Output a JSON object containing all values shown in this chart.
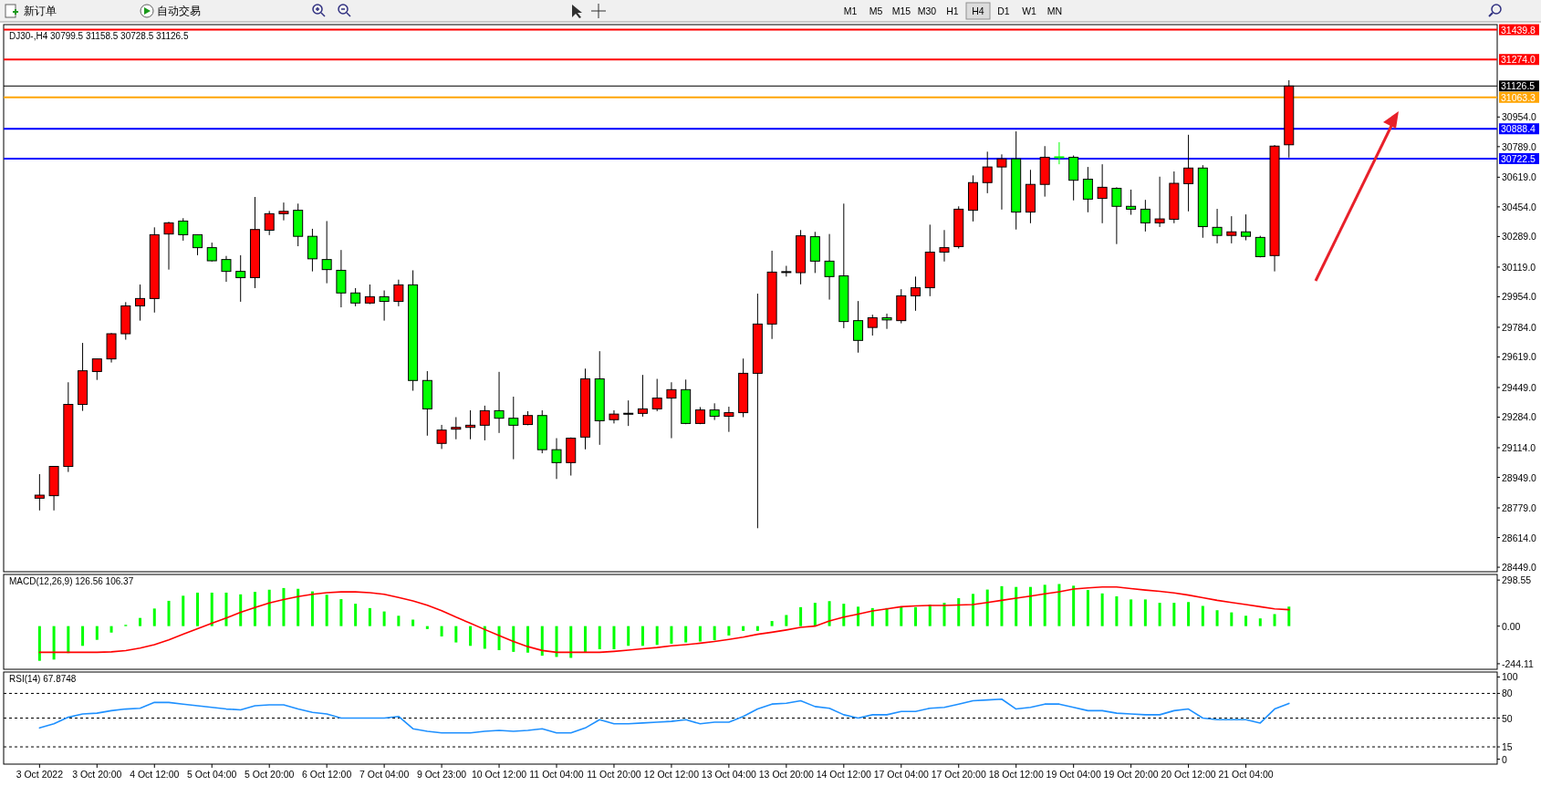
{
  "chart_data": [
    {
      "type": "candlestick",
      "title": "DJ30-,H4  30799.5 31158.5 30728.5 31126.5",
      "tick_labels": "y",
      "annotations": [
        "新订单",
        "自动交易",
        "M1",
        "M5",
        "M15",
        "M30",
        "H1",
        "H4",
        "D1",
        "W1",
        "MN"
      ],
      "categories": [
        null,
        null,
        null,
        null,
        null,
        null,
        null,
        null,
        null,
        null,
        null,
        null,
        null,
        null,
        null,
        null,
        null,
        null,
        null,
        null,
        null,
        null,
        null,
        null,
        null,
        null,
        null,
        null,
        null,
        null,
        null,
        null,
        null,
        null,
        null,
        null,
        null,
        null,
        null,
        null,
        null,
        null,
        null,
        null,
        null,
        null,
        null,
        null,
        null,
        null,
        null,
        null,
        null,
        null,
        null,
        null,
        null,
        null,
        null,
        null,
        null,
        null,
        null,
        null,
        null,
        null,
        null,
        null,
        null,
        null,
        null,
        null,
        null,
        null,
        null,
        null,
        null,
        null,
        null,
        null,
        null,
        null,
        null,
        null,
        null,
        null,
        null,
        null,
        null,
        null,
        null,
        null,
        null,
        null,
        null,
        null,
        null,
        null,
        null,
        null,
        null,
        null,
        null,
        null
      ],
      "ohlc": [
        null,
        null,
        [
          28833,
          28967,
          28765,
          28850
        ],
        [
          28847,
          29010,
          28765,
          29010
        ],
        [
          29010,
          29478,
          28979,
          29355
        ],
        [
          29355,
          29697,
          29319,
          29542
        ],
        [
          29538,
          29608,
          29491,
          29608
        ],
        [
          29608,
          29752,
          29588,
          29748
        ],
        [
          29748,
          29924,
          29715,
          29903
        ],
        [
          29903,
          30022,
          29821,
          29944
        ],
        [
          29944,
          30340,
          29866,
          30299
        ],
        [
          30303,
          30371,
          30105,
          30365
        ],
        [
          30375,
          30391,
          30266,
          30299
        ],
        [
          30299,
          30299,
          30185,
          30227
        ],
        [
          30227,
          30255,
          30150,
          30154
        ],
        [
          30161,
          30181,
          30037,
          30095
        ],
        [
          30095,
          30185,
          29926,
          30060
        ],
        [
          30060,
          30509,
          30002,
          30328
        ],
        [
          30324,
          30431,
          30297,
          30416
        ],
        [
          30416,
          30478,
          30379,
          30429
        ],
        [
          30435,
          30472,
          30235,
          30290
        ],
        [
          30290,
          30332,
          30095,
          30165
        ],
        [
          30161,
          30375,
          30029,
          30105
        ],
        [
          30101,
          30214,
          29895,
          29975
        ],
        [
          29975,
          30002,
          29901,
          29919
        ],
        [
          29919,
          30022,
          29913,
          29954
        ],
        [
          29954,
          29989,
          29821,
          29928
        ],
        [
          29928,
          30049,
          29901,
          30020
        ],
        [
          30020,
          30101,
          29431,
          29488
        ],
        [
          29488,
          29540,
          29181,
          29330
        ],
        [
          29138,
          29241,
          29107,
          29212
        ],
        [
          29217,
          29284,
          29161,
          29227
        ],
        [
          29227,
          29322,
          29161,
          29239
        ],
        [
          29239,
          29348,
          29155,
          29320
        ],
        [
          29320,
          29536,
          29196,
          29278
        ],
        [
          29278,
          29398,
          29050,
          29239
        ],
        [
          29243,
          29317,
          29239,
          29293
        ],
        [
          29293,
          29322,
          29083,
          29103
        ],
        [
          29103,
          29167,
          28940,
          29031
        ],
        [
          29031,
          29171,
          28959,
          29167
        ],
        [
          29173,
          29554,
          29105,
          29497
        ],
        [
          29497,
          29651,
          29130,
          29264
        ],
        [
          29270,
          29322,
          29249,
          29301
        ],
        [
          29303,
          29377,
          29235,
          29303
        ],
        [
          29305,
          29519,
          29287,
          29330
        ],
        [
          29330,
          29497,
          29317,
          29390
        ],
        [
          29390,
          29478,
          29167,
          29437
        ],
        [
          29437,
          29493,
          29245,
          29249
        ],
        [
          29249,
          29340,
          29245,
          29324
        ],
        [
          29324,
          29361,
          29268,
          29289
        ],
        [
          29289,
          29342,
          29202,
          29309
        ],
        [
          29309,
          29610,
          29284,
          29528
        ],
        [
          29528,
          29971,
          28666,
          29802
        ],
        [
          29802,
          30210,
          29719,
          30091
        ],
        [
          30091,
          30126,
          30066,
          30091
        ],
        [
          30088,
          30325,
          30023,
          30293
        ],
        [
          30288,
          30315,
          30086,
          30152
        ],
        [
          30152,
          30303,
          29938,
          30066
        ],
        [
          30070,
          30472,
          29779,
          29816
        ],
        [
          29821,
          29930,
          29643,
          29711
        ],
        [
          29783,
          29854,
          29738,
          29837
        ],
        [
          29837,
          29860,
          29775,
          29825
        ],
        [
          29821,
          29996,
          29806,
          29959
        ],
        [
          29959,
          30066,
          29876,
          30004
        ],
        [
          30004,
          30355,
          29957,
          30202
        ],
        [
          30202,
          30325,
          30150,
          30227
        ],
        [
          30233,
          30457,
          30222,
          30441
        ],
        [
          30435,
          30629,
          30373,
          30589
        ],
        [
          30589,
          30761,
          30530,
          30676
        ],
        [
          30676,
          30746,
          30439,
          30721
        ],
        [
          30721,
          30874,
          30328,
          30425
        ],
        [
          30425,
          30660,
          30363,
          30579
        ],
        [
          30579,
          30792,
          30511,
          30730
        ],
        [
          30730,
          30814,
          30691,
          30730
        ],
        [
          30730,
          30740,
          30490,
          30602
        ],
        [
          30608,
          30676,
          30424,
          30497
        ],
        [
          30501,
          30691,
          30363,
          30563
        ],
        [
          30557,
          30563,
          30247,
          30457
        ],
        [
          30457,
          30550,
          30410,
          30441
        ],
        [
          30441,
          30493,
          30317,
          30365
        ],
        [
          30365,
          30622,
          30342,
          30387
        ],
        [
          30385,
          30651,
          30363,
          30585
        ],
        [
          30583,
          30855,
          30429,
          30670
        ],
        [
          30670,
          30686,
          30282,
          30344
        ],
        [
          30340,
          30443,
          30251,
          30295
        ],
        [
          30295,
          30402,
          30251,
          30315
        ],
        [
          30315,
          30412,
          30268,
          30290
        ],
        [
          30284,
          30293,
          30173,
          30177
        ],
        [
          30183,
          30798,
          30095,
          30792
        ],
        [
          30799.5,
          31158.5,
          30728.5,
          31126.5
        ],
        null,
        null,
        null,
        null,
        null,
        null,
        null,
        null,
        null,
        null,
        null,
        null,
        null,
        null
      ],
      "colors": [
        null,
        null,
        "#ff0000",
        "#ff0000",
        "#ff0000",
        "#ff0000",
        "#ff0000",
        "#ff0000",
        "#ff0000",
        "#ff0000",
        "#ff0000",
        "#ff0000",
        "#00ff00",
        "#00ff00",
        "#00ff00",
        "#00ff00",
        "#00ff00",
        "#ff0000",
        "#ff0000",
        "#ff0000",
        "#00ff00",
        "#00ff00",
        "#00ff00",
        "#00ff00",
        "#00ff00",
        "#ff0000",
        "#00ff00",
        "#ff0000",
        "#00ff00",
        "#00ff00",
        "#ff0000",
        "#ff0000",
        "#ff0000",
        "#ff0000",
        "#00ff00",
        "#00ff00",
        "#ff0000",
        "#00ff00",
        "#00ff00",
        "#ff0000",
        "#ff0000",
        "#00ff00",
        "#ff0000",
        "#000000",
        "#ff0000",
        "#ff0000",
        "#ff0000",
        "#00ff00",
        "#ff0000",
        "#00ff00",
        "#ff0000",
        "#ff0000",
        "#ff0000",
        "#ff0000",
        "#000000",
        "#ff0000",
        "#00ff00",
        "#00ff00",
        "#00ff00",
        "#00ff00",
        "#ff0000",
        "#00ff00",
        "#ff0000",
        "#ff0000",
        "#ff0000",
        "#ff0000",
        "#ff0000",
        "#ff0000",
        "#ff0000",
        "#ff0000",
        "#00ff00",
        "#ff0000",
        "#ff0000",
        "#00ff00",
        "#00ff00",
        "#00ff00",
        "#ff0000",
        "#00ff00",
        "#00ff00",
        "#00ff00",
        "#ff0000",
        "#ff0000",
        "#ff0000",
        "#00ff00",
        "#00ff00",
        "#ff0000",
        "#00ff00",
        "#00ff00",
        "#ff0000",
        "#ff0000",
        null,
        null,
        null,
        null,
        null,
        null,
        null,
        null,
        null,
        null,
        null,
        null,
        null,
        null
      ],
      "ylim": [
        28424,
        31468
      ],
      "yticks": [
        {
          "value": 30954,
          "label": "30954.0"
        },
        {
          "value": 30789,
          "label": "30789.0"
        },
        {
          "value": 30619,
          "label": "30619.0"
        },
        {
          "value": 30454,
          "label": "30454.0"
        },
        {
          "value": 30289,
          "label": "30289.0"
        },
        {
          "value": 30119,
          "label": "30119.0"
        },
        {
          "value": 29954,
          "label": "29954.0"
        },
        {
          "value": 29784,
          "label": "29784.0"
        },
        {
          "value": 29619,
          "label": "29619.0"
        },
        {
          "value": 29449,
          "label": "29449.0"
        },
        {
          "value": 29284,
          "label": "29284.0"
        },
        {
          "value": 29114,
          "label": "29114.0"
        },
        {
          "value": 28949,
          "label": "28949.0"
        },
        {
          "value": 28779,
          "label": "28779.0"
        },
        {
          "value": 28614,
          "label": "28614.0"
        },
        {
          "value": 28449,
          "label": "28449.0"
        }
      ],
      "ref_lines": [
        {
          "axis": "y",
          "value": 31439.8,
          "label": "31439.8",
          "color": "#ff0000"
        },
        {
          "axis": "y",
          "value": 31274.0,
          "label": "31274.0",
          "color": "#ff0000"
        },
        {
          "axis": "y",
          "value": 31126.5,
          "label": "31126.5",
          "color": "#000000"
        },
        {
          "axis": "y",
          "value": 31063.3,
          "label": "31063.3",
          "color": "#ffa500"
        },
        {
          "axis": "y",
          "value": 30888.4,
          "label": "30888.4",
          "color": "#0000ff"
        },
        {
          "axis": "y",
          "value": 30722.5,
          "label": "30722.5",
          "color": "#0000ff"
        }
      ]
    },
    {
      "type": "bar",
      "title": "MACD(12,26,9) 126.56 106.37",
      "tick_labels": "y",
      "categories": [
        null,
        null,
        null,
        null,
        null,
        null,
        null,
        null,
        null,
        null,
        null,
        null,
        null,
        null,
        null,
        null,
        null,
        null,
        null,
        null,
        null,
        null,
        null,
        null,
        null,
        null,
        null,
        null,
        null,
        null,
        null,
        null,
        null,
        null,
        null,
        null,
        null,
        null,
        null,
        null,
        null,
        null,
        null,
        null,
        null,
        null,
        null,
        null,
        null,
        null,
        null,
        null,
        null,
        null,
        null,
        null,
        null,
        null,
        null,
        null,
        null,
        null,
        null,
        null,
        null,
        null,
        null,
        null,
        null,
        null,
        null,
        null,
        null,
        null,
        null,
        null,
        null,
        null,
        null,
        null,
        null,
        null,
        null,
        null,
        null,
        null,
        null,
        null,
        null,
        null,
        null,
        null,
        null,
        null,
        null,
        null,
        null,
        null,
        null,
        null,
        null,
        null,
        null,
        null
      ],
      "series": [
        {
          "type": "bar",
          "color": "#00ff00",
          "values": [
            null,
            null,
            -225,
            -217,
            -175,
            -128,
            -89,
            -42,
            8,
            53,
            114,
            164,
            197,
            217,
            217,
            217,
            206,
            222,
            236,
            247,
            242,
            225,
            203,
            175,
            145,
            117,
            95,
            67,
            42,
            -19,
            -67,
            -106,
            -128,
            -147,
            -156,
            -167,
            -172,
            -192,
            -200,
            -206,
            -172,
            -150,
            -150,
            -128,
            -128,
            -122,
            -114,
            -106,
            -100,
            -92,
            -61,
            -31,
            -31,
            33,
            72,
            123,
            151,
            162,
            145,
            126,
            117,
            117,
            123,
            123,
            140,
            151,
            181,
            209,
            237,
            259,
            254,
            254,
            268,
            273,
            262,
            234,
            212,
            193,
            173,
            173,
            151,
            151,
            156,
            131,
            103,
            89,
            67,
            50,
            78,
            126.56,
            null,
            null,
            null,
            null,
            null,
            null,
            null,
            null,
            null,
            null,
            null,
            null,
            null,
            null
          ]
        },
        {
          "type": "line",
          "color": "#ff0000",
          "values": [
            null,
            null,
            -170,
            -170,
            -170,
            -170,
            -170,
            -167,
            -159,
            -142,
            -120,
            -89,
            -53,
            -17,
            19,
            53,
            89,
            120,
            150,
            172,
            192,
            206,
            217,
            222,
            222,
            217,
            206,
            186,
            164,
            136,
            100,
            58,
            19,
            -22,
            -61,
            -100,
            -133,
            -158,
            -170,
            -170,
            -170,
            -170,
            -164,
            -156,
            -147,
            -139,
            -128,
            -120,
            -111,
            -100,
            -86,
            -72,
            -53,
            -40,
            -25,
            -8,
            0,
            33,
            59,
            78,
            98,
            112,
            126,
            131,
            134,
            134,
            137,
            140,
            153,
            167,
            181,
            195,
            209,
            223,
            240,
            248,
            254,
            254,
            243,
            234,
            226,
            215,
            201,
            184,
            167,
            153,
            140,
            126,
            112,
            106.37,
            null,
            null,
            null,
            null,
            null,
            null,
            null,
            null,
            null,
            null,
            null,
            null,
            null,
            null
          ]
        }
      ],
      "ylim": [
        -280,
        335
      ],
      "yticks": [
        298.55,
        {
          "value": 0,
          "label": "0.00"
        },
        -244.11
      ]
    },
    {
      "type": "line",
      "title": "RSI(14) 67.8748",
      "categories": [
        null,
        null,
        "3 Oct 2022",
        null,
        null,
        null,
        "3 Oct 20:00",
        null,
        null,
        null,
        "4 Oct 12:00",
        null,
        null,
        null,
        "5 Oct 04:00",
        null,
        null,
        null,
        "5 Oct 20:00",
        null,
        null,
        null,
        "6 Oct 12:00",
        null,
        null,
        null,
        "7 Oct 04:00",
        null,
        null,
        null,
        "9 Oct 23:00",
        null,
        null,
        null,
        "10 Oct 12:00",
        null,
        null,
        null,
        "11 Oct 04:00",
        null,
        null,
        null,
        "11 Oct 20:00",
        null,
        null,
        null,
        "12 Oct 12:00",
        null,
        null,
        null,
        "13 Oct 04:00",
        null,
        null,
        null,
        "13 Oct 20:00",
        null,
        null,
        null,
        "14 Oct 12:00",
        null,
        null,
        null,
        "17 Oct 04:00",
        null,
        null,
        null,
        "17 Oct 20:00",
        null,
        null,
        null,
        "18 Oct 12:00",
        null,
        null,
        null,
        "19 Oct 04:00",
        null,
        null,
        null,
        "19 Oct 20:00",
        null,
        null,
        null,
        "20 Oct 12:00",
        null,
        null,
        null,
        "21 Oct 04:00",
        null,
        null,
        null,
        null,
        null,
        null,
        null,
        null,
        null,
        null,
        null,
        null,
        null,
        null,
        null,
        null,
        null
      ],
      "series": [
        {
          "color": "#1e90ff",
          "values": [
            null,
            null,
            38,
            43,
            51,
            55,
            56,
            59,
            61,
            62,
            69,
            69,
            67,
            65,
            63,
            61,
            60,
            65,
            66,
            66,
            61,
            57,
            55,
            50,
            50,
            50,
            50,
            52,
            37,
            34,
            32,
            32,
            32,
            34,
            35,
            34,
            35,
            37,
            32,
            32,
            38,
            48,
            43,
            43,
            44,
            45,
            46,
            48,
            43,
            45,
            45,
            52,
            61,
            67,
            68,
            71,
            64,
            62,
            54,
            50,
            54,
            54,
            58,
            58,
            62,
            63,
            67,
            71,
            72,
            73,
            61,
            63,
            67,
            67,
            63,
            59,
            59,
            56,
            55,
            54,
            54,
            59,
            61,
            50,
            48,
            48,
            48,
            44,
            61,
            67.8748,
            null,
            null,
            null,
            null,
            null,
            null,
            null,
            null,
            null,
            null,
            null,
            null,
            null,
            null
          ]
        }
      ],
      "ylim": [
        -6,
        106
      ],
      "yticks": [
        100,
        80,
        50,
        15,
        0
      ],
      "ref_lines": [
        {
          "axis": "y",
          "value": 80,
          "color": "#000000",
          "line_style": "dashed"
        },
        {
          "axis": "y",
          "value": 50,
          "color": "#000000",
          "line_style": "dashed"
        },
        {
          "axis": "y",
          "value": 15,
          "color": "#000000",
          "line_style": "dashed"
        }
      ]
    }
  ]
}
